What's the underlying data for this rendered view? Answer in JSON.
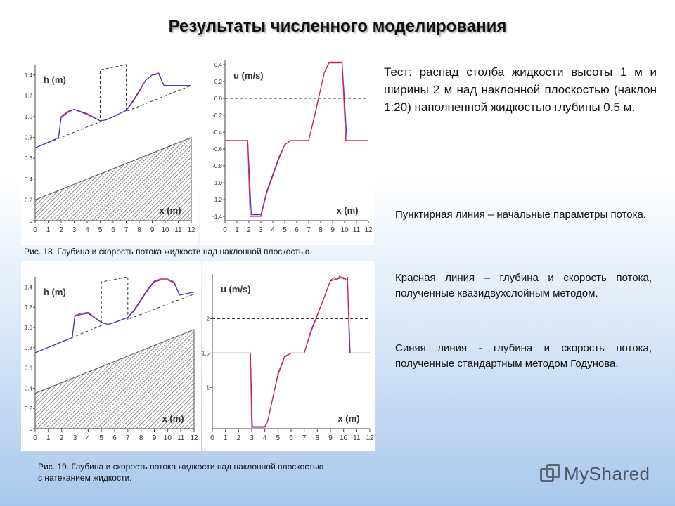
{
  "title": "Результаты численного моделирования",
  "test_text": "Тест: распад столба жидкости высоты 1 м и ширины 2 м над наклонной плоскостью (наклон 1:20) наполненной жидкостью глубины 0.5 м.",
  "notes": [
    "Пунктирная линия – начальные параметры потока.",
    "Красная линия – глубина и скорость потока, полученные квазидвухслойным методом.",
    "Синяя линия - глубина и скорость потока, полученные стандартным методом Годунова."
  ],
  "captions": {
    "fig18": "Рис. 18. Глубина и скорость потока жидкости над наклонной плоскостью.",
    "fig19_line1": "Рис. 19. Глубина и скорость потока жидкости над наклонной плоскостью",
    "fig19_line2": "с натеканием жидкости."
  },
  "logo_text": "MyShared",
  "colors": {
    "red": "#e0204a",
    "blue": "#3a3ad0",
    "dash": "#333333",
    "hatch": "#555555"
  },
  "chart_data": [
    {
      "type": "line",
      "id": "fig18-depth",
      "ylabel": "h (m)",
      "xlabel": "x (m)",
      "xlim": [
        0,
        12
      ],
      "ylim": [
        0,
        1.5
      ],
      "x_ticks": [
        "0",
        "1",
        "2",
        "3",
        "4",
        "5",
        "6",
        "7",
        "8",
        "9",
        "10",
        "11",
        "12"
      ],
      "y_ticks": [
        "0",
        "0.2",
        "0.4",
        "0.6",
        "0.8",
        "1.0",
        "1.2",
        "1.4"
      ],
      "y_tick_values": [
        0,
        0.2,
        0.4,
        0.6,
        0.8,
        1.0,
        1.2,
        1.4
      ],
      "bottom_line": [
        [
          0,
          0.2
        ],
        [
          12,
          0.8
        ]
      ],
      "initial": [
        [
          0,
          0.7
        ],
        [
          5,
          0.95
        ],
        [
          5,
          1.45
        ],
        [
          7,
          1.5
        ],
        [
          7,
          1.05
        ],
        [
          12,
          1.3
        ]
      ],
      "series": [
        {
          "color": "red",
          "points": [
            [
              0,
              0.7
            ],
            [
              1.5,
              0.78
            ],
            [
              1.8,
              0.8
            ],
            [
              2,
              1.0
            ],
            [
              2.5,
              1.05
            ],
            [
              3,
              1.07
            ],
            [
              4,
              1.03
            ],
            [
              5,
              0.96
            ],
            [
              5.5,
              0.97
            ],
            [
              6,
              1.0
            ],
            [
              7,
              1.06
            ],
            [
              7.5,
              1.15
            ],
            [
              8,
              1.25
            ],
            [
              8.5,
              1.35
            ],
            [
              9,
              1.4
            ],
            [
              9.5,
              1.42
            ],
            [
              9.9,
              1.3
            ],
            [
              12,
              1.3
            ]
          ]
        },
        {
          "color": "blue",
          "points": [
            [
              0,
              0.7
            ],
            [
              1.5,
              0.78
            ],
            [
              1.8,
              0.8
            ],
            [
              2,
              0.99
            ],
            [
              2.5,
              1.04
            ],
            [
              3,
              1.07
            ],
            [
              4,
              1.02
            ],
            [
              5,
              0.96
            ],
            [
              5.5,
              0.97
            ],
            [
              6,
              1.0
            ],
            [
              7,
              1.06
            ],
            [
              7.5,
              1.14
            ],
            [
              8,
              1.24
            ],
            [
              8.5,
              1.35
            ],
            [
              9,
              1.4
            ],
            [
              9.5,
              1.41
            ],
            [
              9.9,
              1.3
            ],
            [
              12,
              1.3
            ]
          ]
        }
      ]
    },
    {
      "type": "line",
      "id": "fig18-velocity",
      "ylabel": "u (m/s)",
      "xlabel": "x (m)",
      "xlim": [
        0,
        12
      ],
      "ylim": [
        -1.45,
        0.45
      ],
      "x_ticks": [
        "0",
        "1",
        "2",
        "3",
        "4",
        "5",
        "6",
        "7",
        "8",
        "9",
        "10",
        "11",
        "12"
      ],
      "y_ticks": [
        "0.4",
        "0.2",
        "0.0",
        "-0.2",
        "-0.4",
        "-0.6",
        "-0.8",
        "-1.0",
        "-1.2",
        "-1.4"
      ],
      "y_tick_values": [
        0.4,
        0.2,
        0,
        -0.2,
        -0.4,
        -0.6,
        -0.8,
        -1.0,
        -1.2,
        -1.4
      ],
      "initial_level": 0,
      "series": [
        {
          "color": "blue",
          "points": [
            [
              0,
              -0.5
            ],
            [
              1.9,
              -0.5
            ],
            [
              2.2,
              -1.38
            ],
            [
              3,
              -1.38
            ],
            [
              3.5,
              -1.1
            ],
            [
              4.5,
              -0.7
            ],
            [
              5,
              -0.55
            ],
            [
              5.5,
              -0.5
            ],
            [
              7,
              -0.5
            ],
            [
              7.5,
              -0.2
            ],
            [
              8.3,
              0.3
            ],
            [
              8.7,
              0.42
            ],
            [
              9.8,
              0.42
            ],
            [
              10.2,
              -0.5
            ],
            [
              12,
              -0.5
            ]
          ]
        },
        {
          "color": "red",
          "points": [
            [
              0,
              -0.5
            ],
            [
              1.9,
              -0.5
            ],
            [
              2.1,
              -1.4
            ],
            [
              3,
              -1.4
            ],
            [
              3.5,
              -1.12
            ],
            [
              4.5,
              -0.72
            ],
            [
              5,
              -0.55
            ],
            [
              5.5,
              -0.5
            ],
            [
              7,
              -0.5
            ],
            [
              7.5,
              -0.21
            ],
            [
              8.3,
              0.3
            ],
            [
              8.7,
              0.43
            ],
            [
              9.8,
              0.43
            ],
            [
              10.1,
              -0.5
            ],
            [
              12,
              -0.5
            ]
          ]
        }
      ]
    },
    {
      "type": "line",
      "id": "fig19-depth",
      "ylabel": "h (m)",
      "xlabel": "x (m)",
      "xlim": [
        0,
        12
      ],
      "ylim": [
        0,
        1.5
      ],
      "x_ticks": [
        "0",
        "1",
        "2",
        "3",
        "4",
        "5",
        "6",
        "7",
        "8",
        "9",
        "10",
        "11",
        "12"
      ],
      "y_ticks": [
        "0",
        "0.2",
        "0.4",
        "0.6",
        "0.8",
        "1.0",
        "1.2",
        "1.4"
      ],
      "y_tick_values": [
        0,
        0.2,
        0.4,
        0.6,
        0.8,
        1.0,
        1.2,
        1.4
      ],
      "bottom_line": [
        [
          0,
          0.35
        ],
        [
          12,
          0.98
        ]
      ],
      "initial": [
        [
          0,
          0.75
        ],
        [
          5,
          1.02
        ],
        [
          5,
          1.45
        ],
        [
          7,
          1.5
        ],
        [
          7,
          1.08
        ],
        [
          12,
          1.33
        ]
      ],
      "series": [
        {
          "color": "red",
          "points": [
            [
              0,
              0.75
            ],
            [
              2.8,
              0.9
            ],
            [
              3,
              1.12
            ],
            [
              3.5,
              1.14
            ],
            [
              4,
              1.15
            ],
            [
              5,
              1.05
            ],
            [
              5.5,
              1.03
            ],
            [
              6,
              1.05
            ],
            [
              7,
              1.1
            ],
            [
              7.5,
              1.18
            ],
            [
              8,
              1.28
            ],
            [
              8.5,
              1.38
            ],
            [
              9,
              1.46
            ],
            [
              9.5,
              1.48
            ],
            [
              10,
              1.48
            ],
            [
              10.5,
              1.45
            ],
            [
              10.9,
              1.32
            ],
            [
              12,
              1.35
            ]
          ]
        },
        {
          "color": "blue",
          "points": [
            [
              0,
              0.75
            ],
            [
              2.8,
              0.9
            ],
            [
              3,
              1.11
            ],
            [
              3.5,
              1.13
            ],
            [
              4,
              1.14
            ],
            [
              5,
              1.05
            ],
            [
              5.5,
              1.03
            ],
            [
              6,
              1.05
            ],
            [
              7,
              1.1
            ],
            [
              7.5,
              1.17
            ],
            [
              8,
              1.27
            ],
            [
              8.5,
              1.37
            ],
            [
              9,
              1.45
            ],
            [
              9.5,
              1.47
            ],
            [
              10,
              1.47
            ],
            [
              10.5,
              1.44
            ],
            [
              10.9,
              1.32
            ],
            [
              12,
              1.35
            ]
          ]
        }
      ]
    },
    {
      "type": "line",
      "id": "fig19-velocity",
      "ylabel": "u (m/s)",
      "xlabel": "x (m)",
      "xlim": [
        0,
        12
      ],
      "ylim": [
        0.4,
        2.65
      ],
      "x_ticks": [
        "0",
        "1",
        "2",
        "3",
        "4",
        "5",
        "6",
        "7",
        "8",
        "9",
        "10",
        "11",
        "12"
      ],
      "y_ticks": [
        "2",
        "1.5",
        "1"
      ],
      "y_tick_values": [
        2,
        1.5,
        1
      ],
      "initial_level": 2,
      "series": [
        {
          "color": "blue",
          "points": [
            [
              0,
              1.5
            ],
            [
              2.9,
              1.5
            ],
            [
              3.05,
              0.43
            ],
            [
              4,
              0.43
            ],
            [
              4.2,
              0.5
            ],
            [
              4.5,
              0.75
            ],
            [
              5,
              1.2
            ],
            [
              5.5,
              1.45
            ],
            [
              6,
              1.5
            ],
            [
              7,
              1.5
            ],
            [
              7.5,
              1.8
            ],
            [
              8.5,
              2.3
            ],
            [
              9,
              2.55
            ],
            [
              9.5,
              2.58
            ],
            [
              10,
              2.6
            ],
            [
              10.3,
              2.55
            ],
            [
              10.5,
              1.5
            ],
            [
              12,
              1.5
            ]
          ]
        },
        {
          "color": "red",
          "points": [
            [
              0,
              1.5
            ],
            [
              2.9,
              1.5
            ],
            [
              3.0,
              0.42
            ],
            [
              4,
              0.42
            ],
            [
              4.2,
              0.5
            ],
            [
              4.5,
              0.76
            ],
            [
              5,
              1.18
            ],
            [
              5.5,
              1.44
            ],
            [
              6,
              1.5
            ],
            [
              7,
              1.5
            ],
            [
              7.5,
              1.82
            ],
            [
              8.5,
              2.3
            ],
            [
              9,
              2.56
            ],
            [
              9.3,
              2.6
            ],
            [
              9.5,
              2.56
            ],
            [
              9.7,
              2.62
            ],
            [
              10,
              2.58
            ],
            [
              10.3,
              2.6
            ],
            [
              10.45,
              1.5
            ],
            [
              12,
              1.5
            ]
          ]
        }
      ]
    }
  ]
}
